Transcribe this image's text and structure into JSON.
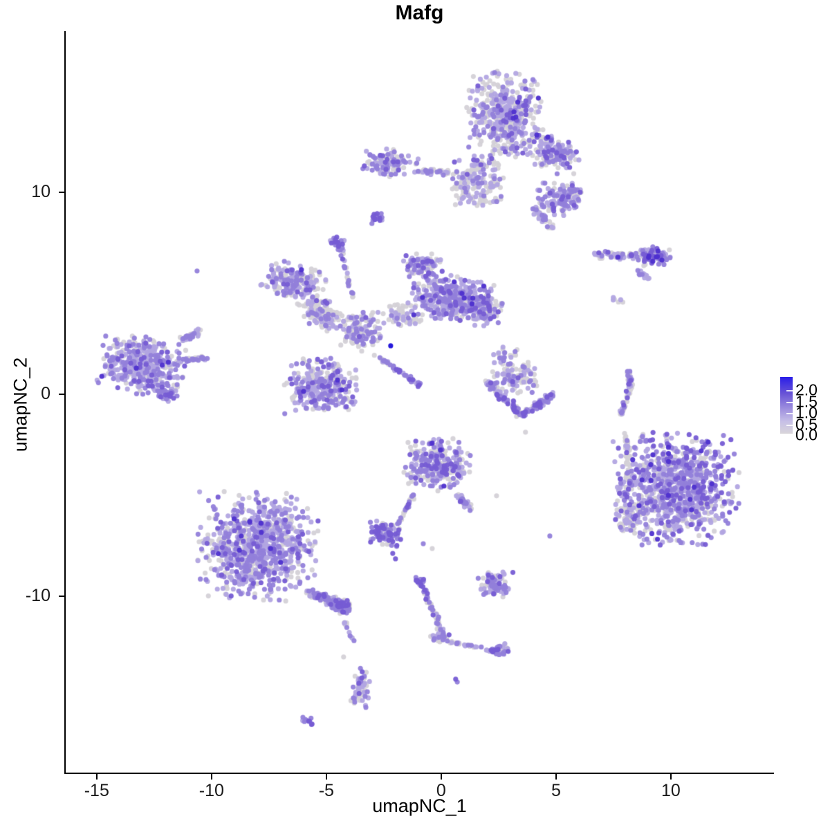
{
  "title": "Mafg",
  "axes": {
    "x": {
      "label": "umapNC_1",
      "ticks": [
        "-15",
        "-10",
        "-5",
        "0",
        "5",
        "10"
      ],
      "tick_values": [
        -15,
        -10,
        -5,
        0,
        5,
        10
      ]
    },
    "y": {
      "label": "umapNC_2",
      "ticks": [
        "-10",
        "0",
        "10"
      ],
      "tick_values": [
        -10,
        0,
        10
      ]
    }
  },
  "legend": {
    "labels": [
      "2.0",
      "1.5",
      "1.0",
      "0.5",
      "0.0"
    ],
    "gradient_top": "#2a1ee8",
    "gradient_mid": "#9c8dde",
    "gradient_bottom": "#d8d5da"
  },
  "chart_data": {
    "type": "scatter",
    "title": "Mafg",
    "xlabel": "umapNC_1",
    "ylabel": "umapNC_2",
    "xlim": [
      -16.35,
      14.46
    ],
    "ylim": [
      -18.77,
      17.98
    ],
    "grid": false,
    "legend_position": "right",
    "color_scale": {
      "label_values": [
        2.0,
        1.5,
        1.0,
        0.5,
        0.0
      ],
      "low_color": "#d4d1d7",
      "high_color": "#2a1ee8"
    },
    "palette": {
      "grey": "#d4d1d7",
      "light": "#b2a5e2",
      "mid": "#9280da",
      "deep": "#765cd4",
      "dark": "#4e30cf",
      "max": "#1a0dd9"
    },
    "point_radius_px": 3.6,
    "clusters": [
      {
        "name": "top-main",
        "type": "blob",
        "cx": 2.77,
        "cy": 13.87,
        "rx": 1.66,
        "ry": 2.12,
        "rot": 0,
        "n": 430,
        "mix": {
          "grey": 45,
          "light": 33,
          "mid": 17,
          "deep": 4,
          "dark": 1
        }
      },
      {
        "name": "top-lower",
        "type": "blob",
        "cx": 1.57,
        "cy": 10.55,
        "rx": 1.15,
        "ry": 1.25,
        "rot": 0,
        "n": 170,
        "mix": {
          "grey": 50,
          "light": 30,
          "mid": 16,
          "deep": 4
        }
      },
      {
        "name": "top-right-wedge",
        "type": "blob",
        "cx": 4.88,
        "cy": 11.92,
        "rx": 1.27,
        "ry": 0.89,
        "rot": -20,
        "n": 150,
        "mix": {
          "grey": 35,
          "light": 35,
          "mid": 22,
          "deep": 7,
          "dark": 1
        }
      },
      {
        "name": "top-right-lobe",
        "type": "blob",
        "cx": 5.24,
        "cy": 9.73,
        "rx": 1.08,
        "ry": 0.89,
        "rot": 0,
        "n": 130,
        "mix": {
          "grey": 30,
          "light": 35,
          "mid": 25,
          "deep": 9,
          "dark": 1
        }
      },
      {
        "name": "top-tail",
        "type": "chain",
        "x1": 4.04,
        "y1": 9.18,
        "x2": 4.88,
        "y2": 8.15,
        "w": 0.35,
        "n": 40,
        "mix": {
          "grey": 45,
          "light": 30,
          "mid": 20,
          "deep": 5
        }
      },
      {
        "name": "top-arm-bulge",
        "type": "blob",
        "cx": -2.2,
        "cy": 11.47,
        "rx": 1.2,
        "ry": 0.75,
        "rot": -8,
        "n": 120,
        "mix": {
          "grey": 40,
          "light": 30,
          "mid": 22,
          "deep": 8
        }
      },
      {
        "name": "top-arm-link",
        "type": "chain",
        "x1": -1.14,
        "y1": 11.06,
        "x2": 0.72,
        "y2": 10.96,
        "w": 0.3,
        "n": 45,
        "mix": {
          "grey": 55,
          "light": 25,
          "mid": 15,
          "deep": 5
        }
      },
      {
        "name": "top-knot",
        "type": "blob",
        "cx": -2.8,
        "cy": 8.7,
        "rx": 0.35,
        "ry": 0.3,
        "rot": 0,
        "n": 22,
        "mix": {
          "mid": 45,
          "deep": 40,
          "light": 10,
          "grey": 5
        }
      },
      {
        "name": "right-arch",
        "type": "chain",
        "x1": 6.63,
        "y1": 6.92,
        "x2": 9.94,
        "y2": 6.78,
        "w": 0.38,
        "n": 95,
        "mix": {
          "grey": 45,
          "light": 25,
          "mid": 20,
          "deep": 8,
          "dark": 2
        }
      },
      {
        "name": "right-arch-end",
        "type": "blob",
        "cx": 9.25,
        "cy": 6.85,
        "rx": 0.7,
        "ry": 0.5,
        "rot": 0,
        "n": 55,
        "mix": {
          "grey": 30,
          "light": 25,
          "mid": 25,
          "deep": 15,
          "dark": 5
        }
      },
      {
        "name": "right-arch-tail",
        "type": "chain",
        "x1": 8.55,
        "y1": 6.16,
        "x2": 9.04,
        "y2": 5.68,
        "w": 0.22,
        "n": 14,
        "mix": {
          "light": 60,
          "mid": 30,
          "grey": 10
        }
      },
      {
        "name": "right-dots",
        "type": "blob",
        "cx": 7.74,
        "cy": 4.73,
        "rx": 0.28,
        "ry": 0.33,
        "rot": 0,
        "n": 6,
        "mix": {
          "grey": 60,
          "light": 40
        }
      },
      {
        "name": "mid-left-lobe",
        "type": "blob",
        "cx": -6.42,
        "cy": 5.55,
        "rx": 1.45,
        "ry": 0.92,
        "rot": -18,
        "n": 180,
        "mix": {
          "grey": 40,
          "light": 33,
          "mid": 20,
          "deep": 6,
          "dark": 1
        }
      },
      {
        "name": "mid-left-arm",
        "type": "blob",
        "cx": -5.3,
        "cy": 4.04,
        "rx": 1.05,
        "ry": 0.7,
        "rot": -35,
        "n": 120,
        "mix": {
          "grey": 52,
          "light": 28,
          "mid": 16,
          "deep": 4
        }
      },
      {
        "name": "mid-stem",
        "type": "blob",
        "cx": -3.55,
        "cy": 3.15,
        "rx": 0.95,
        "ry": 1.05,
        "rot": 0,
        "n": 140,
        "mix": {
          "grey": 50,
          "light": 28,
          "mid": 17,
          "deep": 5
        }
      },
      {
        "name": "mid-bottom-lobe",
        "type": "blob",
        "cx": -5.21,
        "cy": 0.41,
        "rx": 1.62,
        "ry": 1.38,
        "rot": 0,
        "n": 320,
        "mix": {
          "grey": 36,
          "light": 34,
          "mid": 21,
          "deep": 8,
          "dark": 1
        }
      },
      {
        "name": "mid-right-lobe",
        "type": "blob",
        "cx": 0.42,
        "cy": 4.73,
        "rx": 1.8,
        "ry": 1.15,
        "rot": -10,
        "n": 350,
        "mix": {
          "grey": 24,
          "light": 38,
          "mid": 26,
          "deep": 10,
          "dark": 2
        }
      },
      {
        "name": "mid-top-bump",
        "type": "blob",
        "cx": -0.78,
        "cy": 6.4,
        "rx": 0.88,
        "ry": 0.58,
        "rot": 0,
        "n": 95,
        "mix": {
          "grey": 40,
          "light": 32,
          "mid": 20,
          "deep": 8
        }
      },
      {
        "name": "mid-right-knob",
        "type": "blob",
        "cx": 1.87,
        "cy": 4.21,
        "rx": 0.8,
        "ry": 0.82,
        "rot": 0,
        "n": 120,
        "mix": {
          "grey": 28,
          "light": 34,
          "mid": 24,
          "deep": 12,
          "dark": 2
        }
      },
      {
        "name": "mid-streak",
        "type": "chain",
        "x1": -2.86,
        "y1": 1.95,
        "x2": -0.9,
        "y2": 0.41,
        "w": 0.22,
        "n": 48,
        "mix": {
          "mid": 40,
          "deep": 30,
          "light": 20,
          "grey": 10
        }
      },
      {
        "name": "mid-up-chain",
        "type": "chain",
        "x1": -3.86,
        "y1": 4.79,
        "x2": -4.4,
        "y2": 7.36,
        "w": 0.22,
        "n": 26,
        "mix": {
          "grey": 45,
          "mid": 30,
          "light": 20,
          "deep": 5
        }
      },
      {
        "name": "mid-up-knot",
        "type": "blob",
        "cx": -4.52,
        "cy": 7.47,
        "rx": 0.35,
        "ry": 0.32,
        "rot": 0,
        "n": 20,
        "mix": {
          "mid": 40,
          "deep": 35,
          "light": 15,
          "grey": 10
        }
      },
      {
        "name": "mid-gap-fill",
        "type": "blob",
        "cx": -1.6,
        "cy": 3.94,
        "rx": 0.95,
        "ry": 0.62,
        "rot": 0,
        "n": 55,
        "mix": {
          "grey": 68,
          "light": 22,
          "mid": 10
        }
      },
      {
        "name": "left-main",
        "type": "blob",
        "cx": -13.04,
        "cy": 1.44,
        "rx": 1.9,
        "ry": 1.45,
        "rot": -8,
        "n": 400,
        "mix": {
          "grey": 22,
          "light": 42,
          "mid": 27,
          "deep": 8,
          "dark": 1
        }
      },
      {
        "name": "left-arm",
        "type": "chain",
        "x1": -11.33,
        "y1": 2.67,
        "x2": -10.42,
        "y2": 3.15,
        "w": 0.35,
        "n": 32,
        "mix": {
          "light": 45,
          "mid": 30,
          "grey": 20,
          "deep": 5
        }
      },
      {
        "name": "left-spike",
        "type": "chain",
        "x1": -11.45,
        "y1": 1.58,
        "x2": -10.24,
        "y2": 1.85,
        "w": 0.28,
        "n": 26,
        "mix": {
          "light": 50,
          "mid": 30,
          "grey": 20
        }
      },
      {
        "name": "left-knot",
        "type": "blob",
        "cx": -11.99,
        "cy": 0.07,
        "rx": 0.5,
        "ry": 0.42,
        "rot": 0,
        "n": 45,
        "mix": {
          "mid": 40,
          "light": 30,
          "deep": 20,
          "grey": 10
        }
      },
      {
        "name": "crescent-top",
        "type": "blob",
        "cx": 3.22,
        "cy": 0.86,
        "rx": 1.1,
        "ry": 0.8,
        "rot": 0,
        "n": 95,
        "mix": {
          "grey": 48,
          "light": 28,
          "mid": 18,
          "deep": 6
        }
      },
      {
        "name": "crescent-arc1",
        "type": "chain",
        "x1": 1.87,
        "y1": 0.75,
        "x2": 3.52,
        "y2": -1.03,
        "w": 0.45,
        "n": 75,
        "mix": {
          "mid": 35,
          "deep": 25,
          "light": 22,
          "grey": 18
        }
      },
      {
        "name": "crescent-arc2",
        "type": "chain",
        "x1": 3.52,
        "y1": -1.03,
        "x2": 4.88,
        "y2": 0.0,
        "w": 0.4,
        "n": 55,
        "mix": {
          "mid": 35,
          "deep": 25,
          "light": 22,
          "grey": 18
        }
      },
      {
        "name": "crescent-dots",
        "type": "blob",
        "cx": 2.77,
        "cy": 1.88,
        "rx": 0.6,
        "ry": 0.5,
        "rot": 0,
        "n": 22,
        "mix": {
          "grey": 60,
          "light": 25,
          "mid": 15
        }
      },
      {
        "name": "strip-upper",
        "type": "chain",
        "x1": 8.16,
        "y1": 1.2,
        "x2": 8.25,
        "y2": 0.34,
        "w": 0.25,
        "n": 30,
        "mix": {
          "grey": 62,
          "light": 15,
          "mid": 20,
          "deep": 3
        }
      },
      {
        "name": "strip-lower",
        "type": "chain",
        "x1": 8.25,
        "y1": 0.34,
        "x2": 7.8,
        "y2": -1.03,
        "w": 0.25,
        "n": 32,
        "mix": {
          "grey": 62,
          "light": 15,
          "mid": 20,
          "deep": 3
        }
      },
      {
        "name": "strip-dots",
        "type": "chain",
        "x1": 7.89,
        "y1": -1.71,
        "x2": 8.34,
        "y2": -3.25,
        "w": 0.15,
        "n": 6,
        "mix": {
          "grey": 100
        }
      },
      {
        "name": "bottomright-main",
        "type": "blob",
        "cx": 10.24,
        "cy": -4.66,
        "rx": 2.77,
        "ry": 2.81,
        "rot": 0,
        "n": 950,
        "mix": {
          "grey": 26,
          "light": 34,
          "mid": 27,
          "deep": 11,
          "dark": 2
        }
      },
      {
        "name": "br-left-edge",
        "type": "chain",
        "x1": 8.04,
        "y1": -2.4,
        "x2": 8.25,
        "y2": -4.45,
        "w": 0.4,
        "n": 30,
        "mix": {
          "grey": 70,
          "light": 20,
          "mid": 10
        }
      },
      {
        "name": "br-left-bump",
        "type": "blob",
        "cx": 8.25,
        "cy": -5.99,
        "rx": 0.6,
        "ry": 0.9,
        "rot": 0,
        "n": 60,
        "mix": {
          "grey": 55,
          "light": 30,
          "mid": 15
        }
      },
      {
        "name": "center-mid",
        "type": "blob",
        "cx": -0.18,
        "cy": -3.49,
        "rx": 1.45,
        "ry": 1.3,
        "rot": 0,
        "n": 280,
        "mix": {
          "grey": 30,
          "light": 34,
          "mid": 25,
          "deep": 10,
          "dark": 1
        }
      },
      {
        "name": "center-arm",
        "type": "chain",
        "x1": 0.66,
        "y1": -4.97,
        "x2": 1.33,
        "y2": -5.72,
        "w": 0.35,
        "n": 38,
        "mix": {
          "light": 35,
          "mid": 35,
          "grey": 20,
          "deep": 10
        }
      },
      {
        "name": "center-trail",
        "type": "chain",
        "x1": -1.2,
        "y1": -4.97,
        "x2": -1.84,
        "y2": -6.4,
        "w": 0.22,
        "n": 26,
        "mix": {
          "mid": 35,
          "grey": 30,
          "light": 20,
          "deep": 15
        }
      },
      {
        "name": "small-dense",
        "type": "blob",
        "cx": -2.41,
        "cy": -6.88,
        "rx": 0.78,
        "ry": 0.58,
        "rot": -10,
        "n": 95,
        "mix": {
          "mid": 35,
          "deep": 28,
          "light": 22,
          "grey": 15
        }
      },
      {
        "name": "bottomleft-main",
        "type": "blob",
        "cx": -8.01,
        "cy": -7.53,
        "rx": 2.65,
        "ry": 2.74,
        "rot": 0,
        "n": 850,
        "mix": {
          "grey": 26,
          "light": 40,
          "mid": 26,
          "deep": 7,
          "dark": 1
        }
      },
      {
        "name": "bl-tail",
        "type": "chain",
        "x1": -5.81,
        "y1": -9.76,
        "x2": -4.01,
        "y2": -10.62,
        "w": 0.6,
        "n": 130,
        "mix": {
          "grey": 35,
          "light": 33,
          "mid": 24,
          "deep": 8
        }
      },
      {
        "name": "bl-tail-knot",
        "type": "blob",
        "cx": -4.4,
        "cy": -10.48,
        "rx": 0.45,
        "ry": 0.38,
        "rot": 0,
        "n": 45,
        "mix": {
          "mid": 38,
          "deep": 30,
          "light": 20,
          "grey": 12
        }
      },
      {
        "name": "bl-drip",
        "type": "chain",
        "x1": -4.25,
        "y1": -11.23,
        "x2": -3.8,
        "y2": -12.26,
        "w": 0.2,
        "n": 12,
        "mix": {
          "grey": 50,
          "mid": 30,
          "light": 20
        }
      },
      {
        "name": "drop",
        "type": "blob",
        "cx": -3.52,
        "cy": -14.55,
        "rx": 0.48,
        "ry": 1.0,
        "rot": 0,
        "n": 55,
        "mix": {
          "grey": 35,
          "light": 25,
          "mid": 30,
          "deep": 10
        }
      },
      {
        "name": "drop-tiny",
        "type": "blob",
        "cx": -5.84,
        "cy": -16.16,
        "rx": 0.35,
        "ry": 0.18,
        "rot": -20,
        "n": 10,
        "mix": {
          "mid": 50,
          "deep": 30,
          "light": 20
        }
      },
      {
        "name": "chain-main",
        "type": "chain",
        "x1": -0.96,
        "y1": -9.18,
        "x2": 0.15,
        "y2": -12.05,
        "w": 0.28,
        "n": 52,
        "mix": {
          "grey": 40,
          "light": 22,
          "mid": 30,
          "deep": 8
        }
      },
      {
        "name": "chain-top-knot",
        "type": "blob",
        "cx": -0.96,
        "cy": -9.25,
        "rx": 0.32,
        "ry": 0.3,
        "rot": 0,
        "n": 14,
        "mix": {
          "mid": 40,
          "deep": 35,
          "grey": 15,
          "light": 10
        }
      },
      {
        "name": "chain-mid-knot",
        "type": "blob",
        "cx": -0.09,
        "cy": -11.99,
        "rx": 0.5,
        "ry": 0.42,
        "rot": 0,
        "n": 35,
        "mix": {
          "grey": 45,
          "mid": 30,
          "light": 20,
          "deep": 5
        }
      },
      {
        "name": "chain-branch",
        "type": "chain",
        "x1": 0.42,
        "y1": -12.26,
        "x2": 2.53,
        "y2": -12.77,
        "w": 0.2,
        "n": 30,
        "mix": {
          "grey": 50,
          "mid": 28,
          "light": 22
        }
      },
      {
        "name": "chain-end-knot",
        "type": "blob",
        "cx": 2.53,
        "cy": -12.67,
        "rx": 0.5,
        "ry": 0.35,
        "rot": 0,
        "n": 32,
        "mix": {
          "mid": 35,
          "deep": 25,
          "grey": 25,
          "light": 15
        }
      },
      {
        "name": "small-right",
        "type": "blob",
        "cx": 2.35,
        "cy": -9.42,
        "rx": 0.78,
        "ry": 0.62,
        "rot": 0,
        "n": 72,
        "mix": {
          "light": 35,
          "mid": 33,
          "grey": 20,
          "deep": 12
        }
      }
    ],
    "singles": [
      {
        "x": -2.2,
        "y": 2.4,
        "c": "max"
      },
      {
        "x": -10.63,
        "y": 6.1,
        "c": "mid"
      },
      {
        "x": 4.73,
        "y": -7.02,
        "c": "mid"
      },
      {
        "x": 0.63,
        "y": -14.11,
        "c": "deep"
      },
      {
        "x": 0.7,
        "y": -14.25,
        "c": "mid"
      },
      {
        "x": 3.67,
        "y": -1.88,
        "c": "grey"
      },
      {
        "x": -4.25,
        "y": -13.01,
        "c": "grey"
      },
      {
        "x": -2.11,
        "y": -7.88,
        "c": "deep"
      },
      {
        "x": -1.99,
        "y": -8.15,
        "c": "deep"
      },
      {
        "x": -0.78,
        "y": -7.4,
        "c": "mid"
      },
      {
        "x": -0.39,
        "y": -7.64,
        "c": "grey"
      },
      {
        "x": 2.41,
        "y": -5.03,
        "c": "grey"
      }
    ]
  }
}
